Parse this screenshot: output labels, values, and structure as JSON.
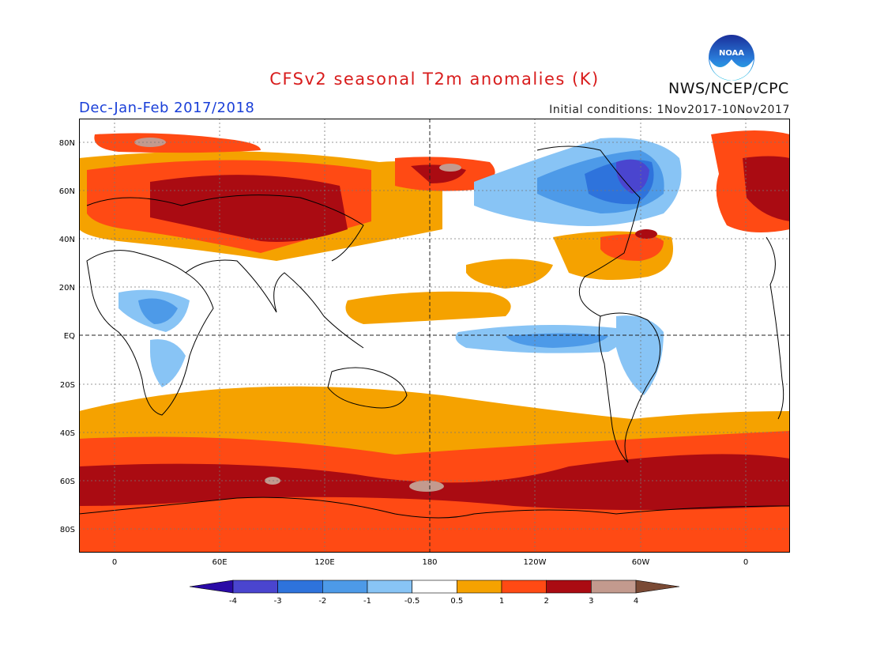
{
  "header": {
    "title": "CFSv2 seasonal T2m anomalies (K)",
    "period": "Dec-Jan-Feb 2017/2018",
    "initial_conditions": "Initial conditions: 1Nov2017-10Nov2017",
    "org": "NWS/NCEP/CPC",
    "logo_text": "NOAA"
  },
  "map": {
    "lat_labels": [
      "80N",
      "60N",
      "40N",
      "20N",
      "EQ",
      "20S",
      "40S",
      "60S",
      "80S"
    ],
    "lon_labels": [
      "0",
      "60E",
      "120E",
      "180",
      "120W",
      "60W",
      "0"
    ]
  },
  "legend": {
    "tick_labels": [
      "-4",
      "-3",
      "-2",
      "-1",
      "-0.5",
      "0.5",
      "1",
      "2",
      "3",
      "4"
    ],
    "colors": [
      "#2a0aa6",
      "#4a45cf",
      "#2e73dc",
      "#4d9ae8",
      "#88c4f5",
      "#ffffff",
      "#f5a200",
      "#ff4a14",
      "#aa0b12",
      "#c39a8e",
      "#7a4a35"
    ]
  }
}
